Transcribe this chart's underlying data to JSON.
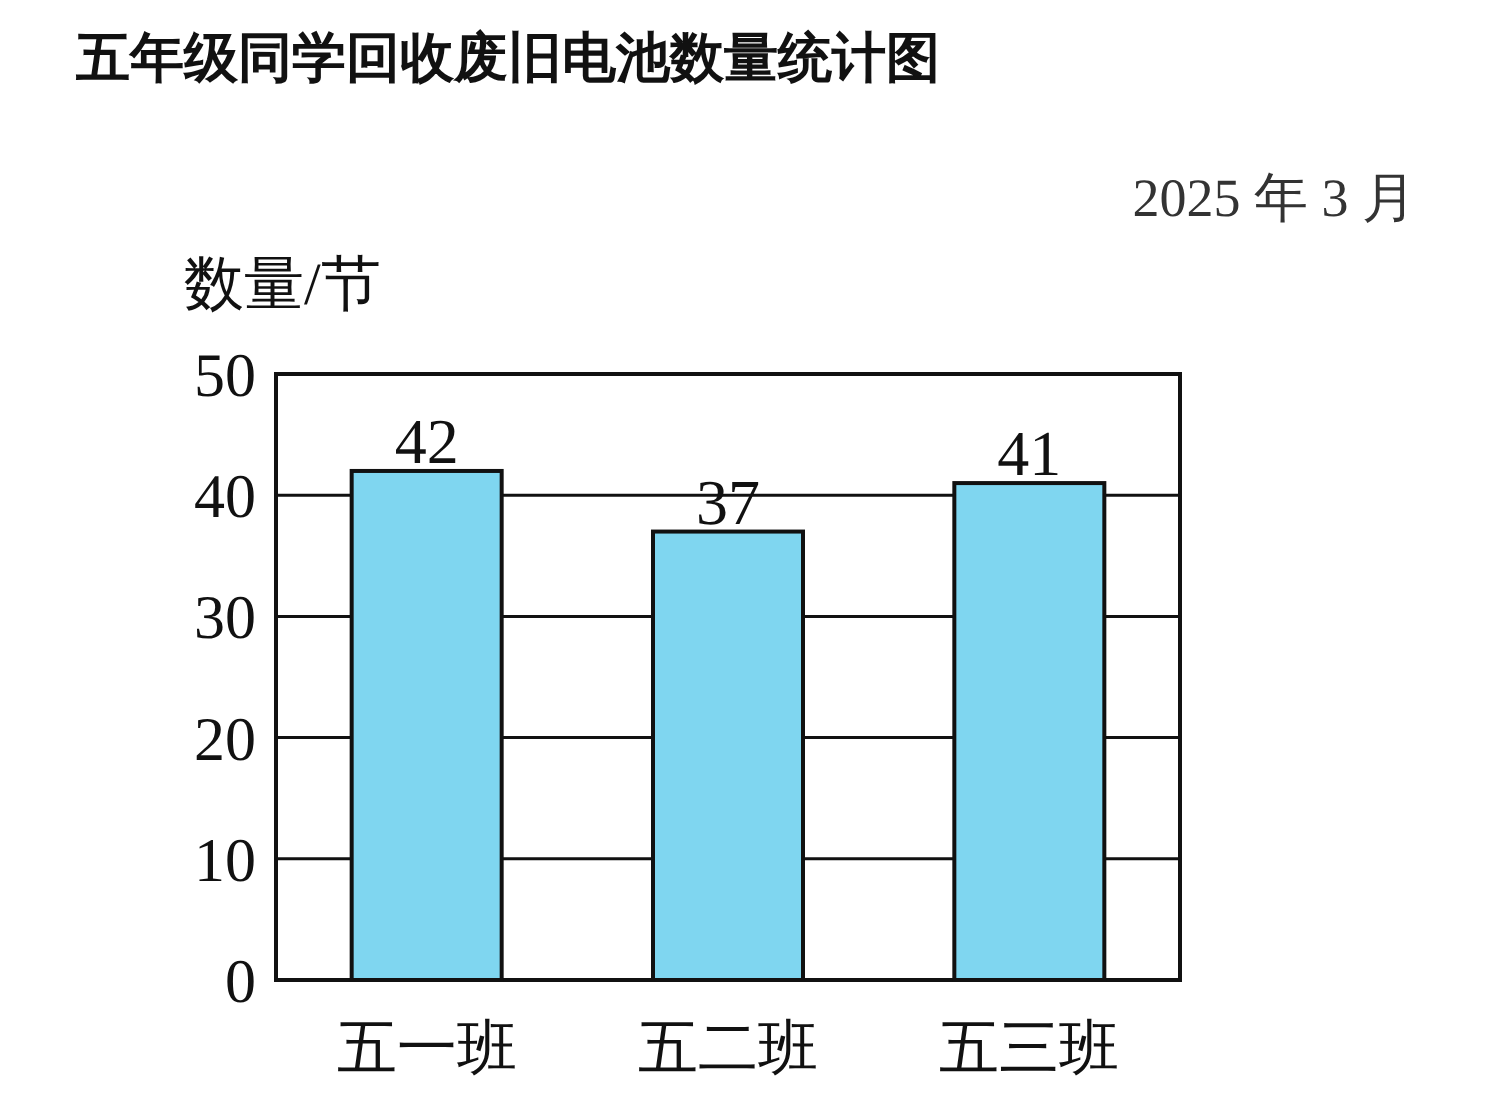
{
  "chart_data": {
    "type": "bar",
    "title": "五年级同学回收废旧电池数量统计图",
    "subtitle": "2025 年 3 月",
    "ylabel": "数量/节",
    "categories": [
      "五一班",
      "五二班",
      "五三班"
    ],
    "values": [
      42,
      37,
      41
    ],
    "color": "#7fd6f0",
    "ylim": [
      0,
      50
    ],
    "yticks": [
      0,
      10,
      20,
      30,
      40,
      50
    ],
    "grid": "y",
    "data_labels": true
  }
}
